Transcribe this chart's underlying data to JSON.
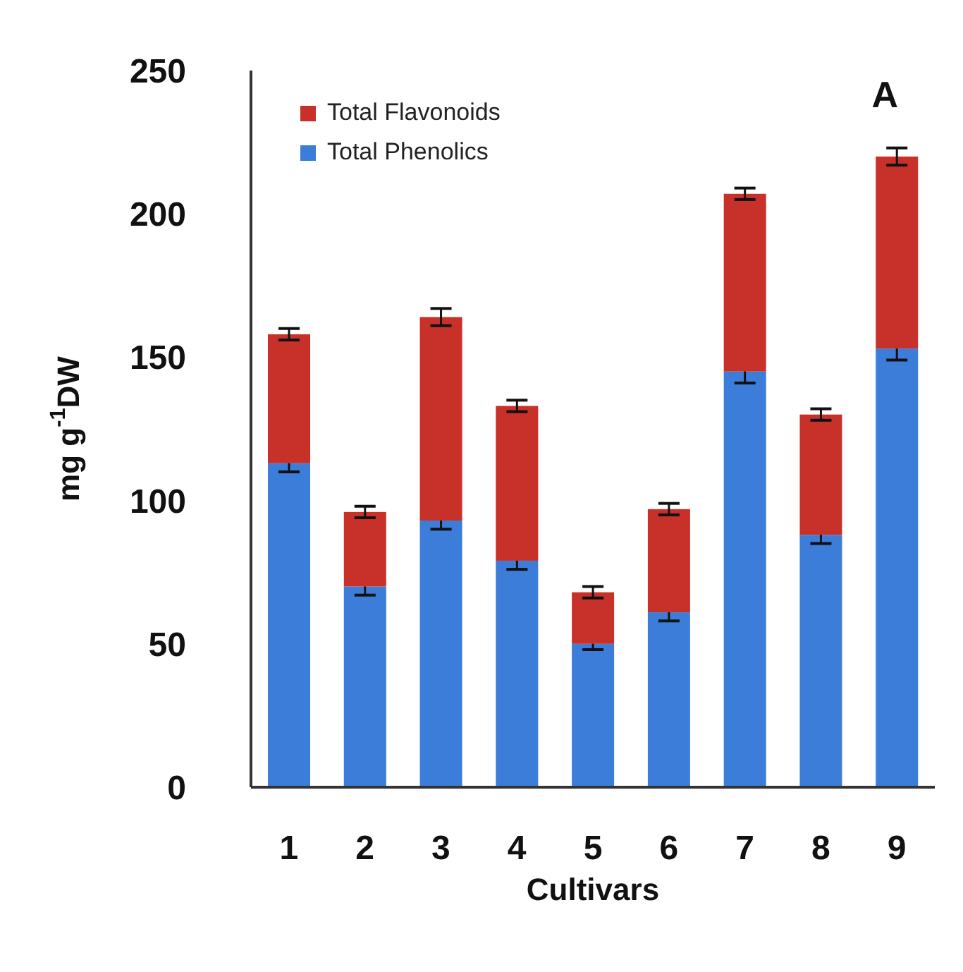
{
  "chart_data": {
    "type": "bar",
    "stacked": true,
    "xlabel": "Cultivars",
    "ylabel": "mg g$^{-1}$DW",
    "annotations": [
      "A"
    ],
    "categories": [
      "1",
      "2",
      "3",
      "4",
      "5",
      "6",
      "7",
      "8",
      "9"
    ],
    "series": [
      {
        "name": "Total Phenolics",
        "color": "#3b7dd8",
        "values": [
          113,
          70,
          93,
          79,
          50,
          61,
          145,
          88,
          153
        ],
        "errors": [
          3,
          3,
          3,
          3,
          2,
          3,
          4,
          3,
          4
        ]
      },
      {
        "name": "Total Flavonoids",
        "color": "#c8302a",
        "values": [
          45,
          26,
          71,
          54,
          18,
          36,
          62,
          42,
          67
        ],
        "errors": [
          2,
          2,
          3,
          2,
          2,
          2,
          2,
          2,
          3
        ]
      }
    ],
    "ylim": [
      0,
      250
    ],
    "yticks": [
      0,
      50,
      100,
      150,
      200,
      250
    ],
    "grid": false,
    "legend": "top left"
  }
}
